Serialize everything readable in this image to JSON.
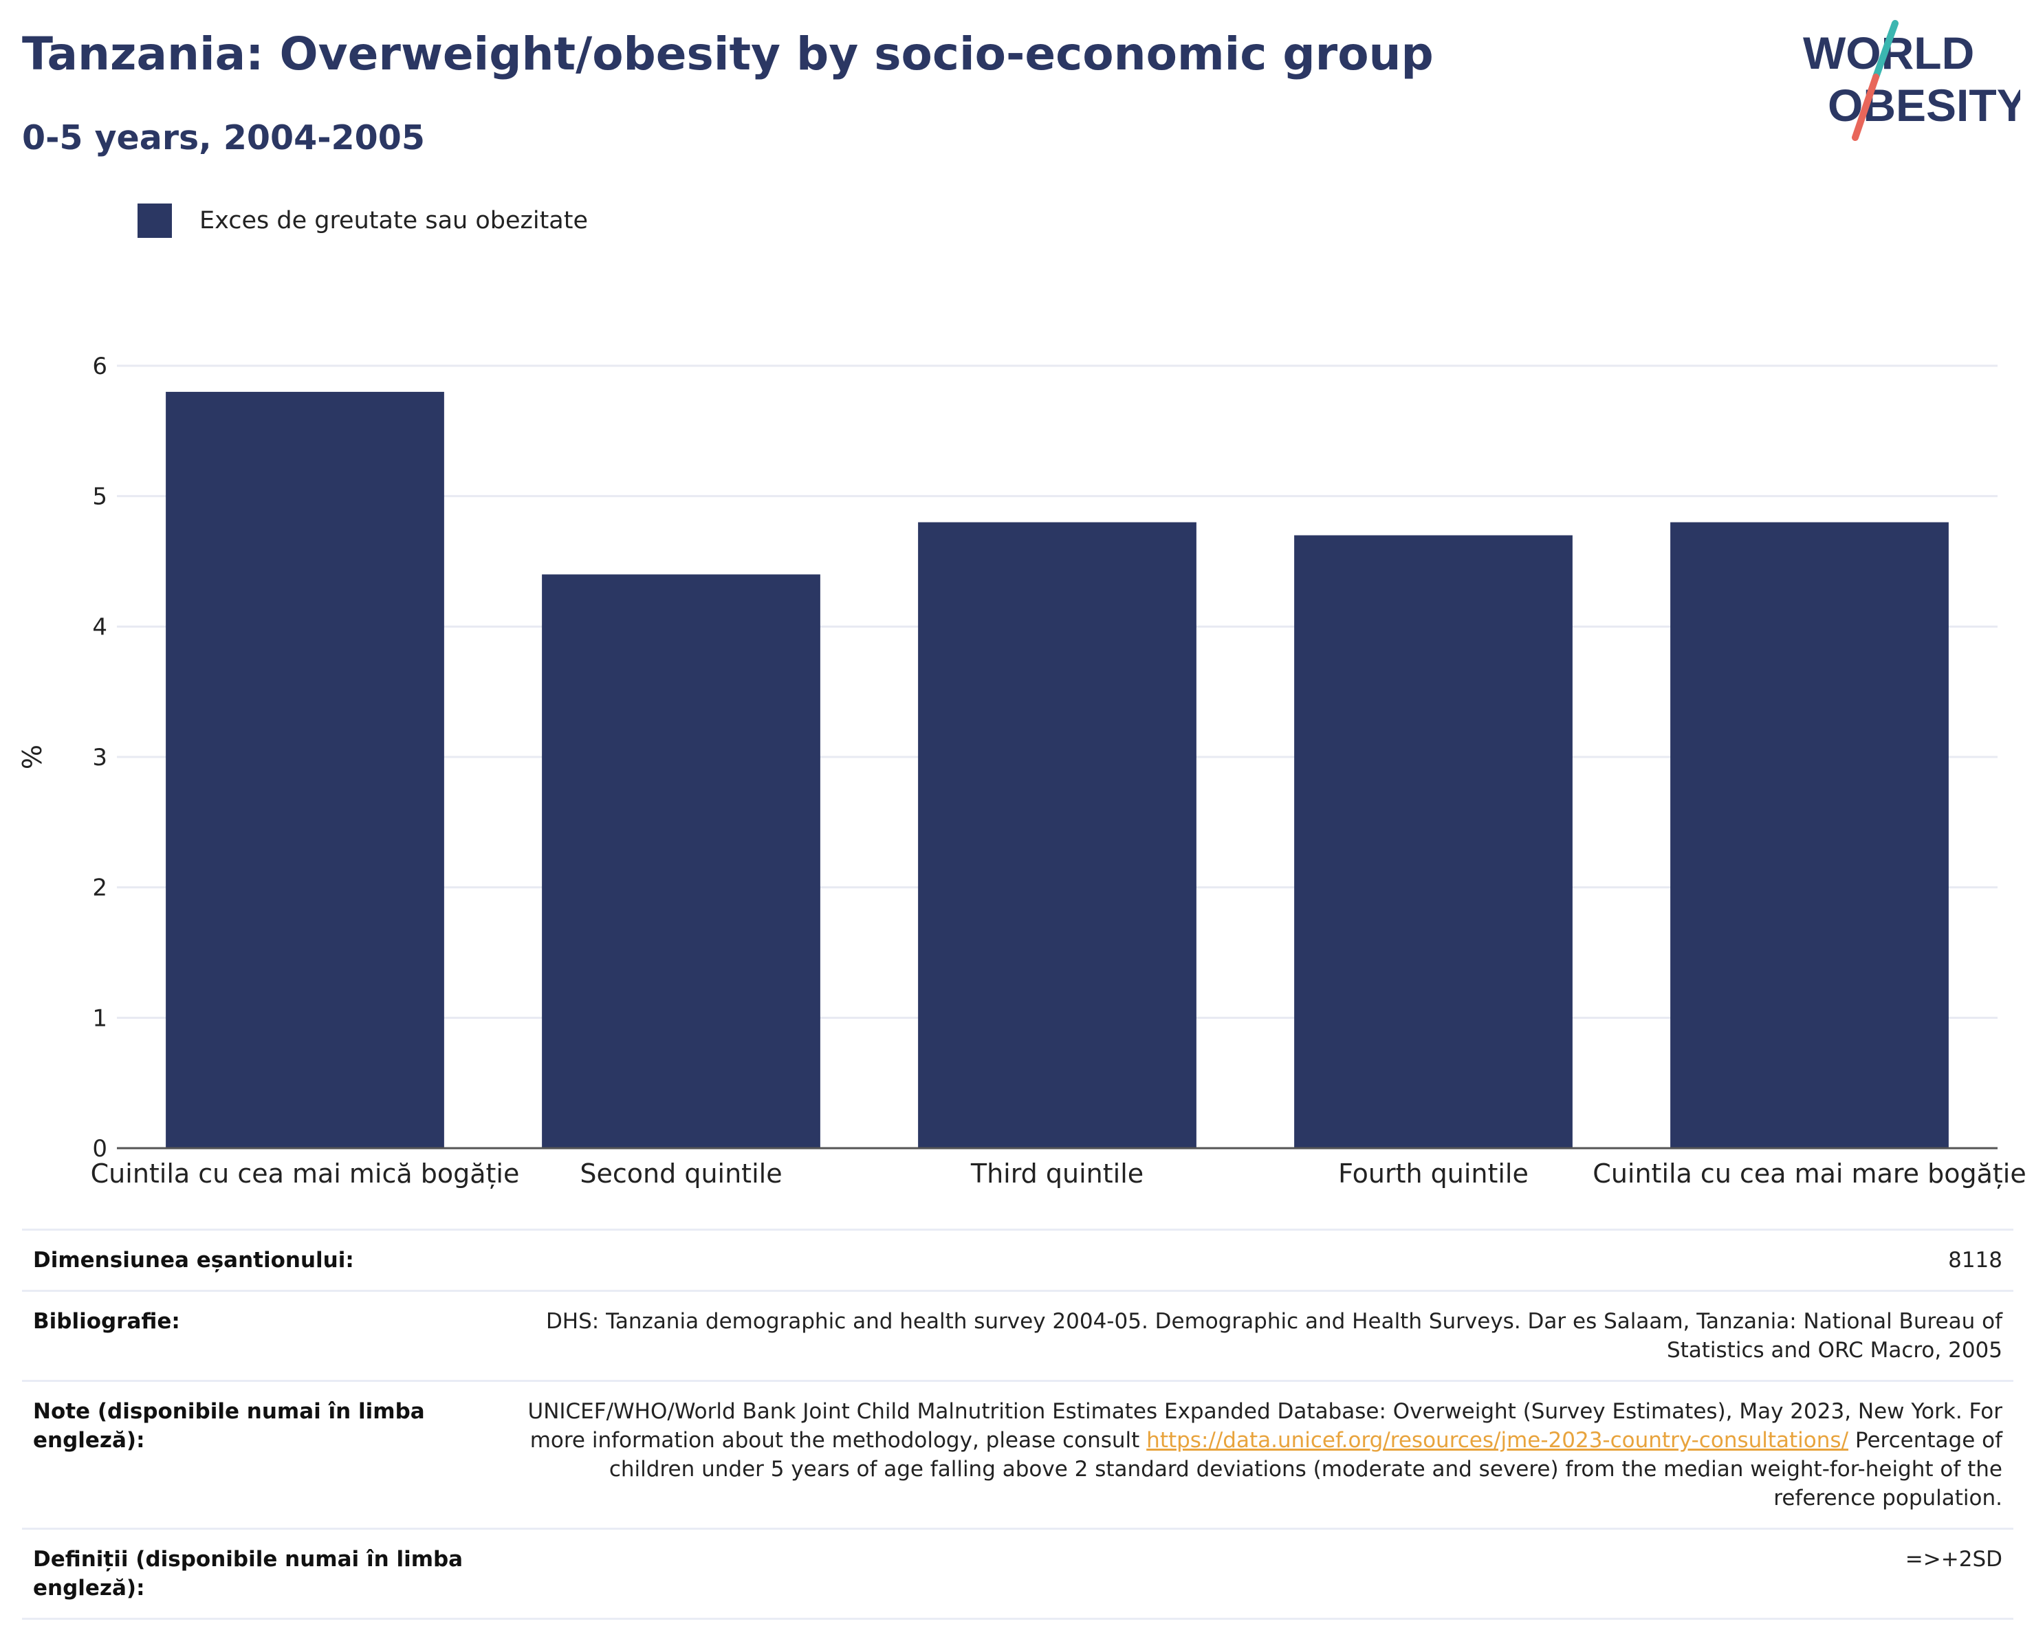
{
  "header": {
    "title": "Tanzania: Overweight/obesity by socio-economic group",
    "subtitle": "0-5 years, 2004-2005"
  },
  "logo": {
    "line1": "WORLD",
    "line2": "OBESITY",
    "text_color": "#2b3763",
    "accent_teal": "#3bb6b0",
    "accent_red": "#e8665a"
  },
  "legend": {
    "label": "Exces de greutate sau obezitate",
    "color": "#2b3763"
  },
  "chart_data": {
    "type": "bar",
    "title": "Tanzania: Overweight/obesity by socio-economic group",
    "subtitle": "0-5 years, 2004-2005",
    "categories": [
      "Cuintila cu cea mai mică bogăție",
      "Second quintile",
      "Third quintile",
      "Fourth quintile",
      "Cuintila cu cea mai mare bogăție"
    ],
    "series": [
      {
        "name": "Exces de greutate sau obezitate",
        "values": [
          5.8,
          4.4,
          4.8,
          4.7,
          4.8
        ],
        "color": "#2b3763"
      }
    ],
    "xlabel": "",
    "ylabel": "%",
    "ylim": [
      0,
      6
    ],
    "yticks": [
      0,
      1,
      2,
      3,
      4,
      5,
      6
    ],
    "grid": true,
    "legend_position": "top-left"
  },
  "info": {
    "sample_size": {
      "label": "Dimensiunea eșantionului:",
      "value": "8118"
    },
    "bibliography": {
      "label": "Bibliografie:",
      "value": "DHS: Tanzania demographic and health survey 2004-05. Demographic and Health Surveys. Dar es Salaam, Tanzania: National Bureau of Statistics and ORC Macro, 2005"
    },
    "notes": {
      "label": "Note (disponibile numai în limba engleză):",
      "text_before": "UNICEF/WHO/World Bank Joint Child Malnutrition Estimates Expanded Database: Overweight (Survey Estimates), May 2023, New York. For more information about the methodology, please consult ",
      "link": "https://data.unicef.org/resources/jme-2023-country-consultations/",
      "text_after": " Percentage of children under 5 years of age falling above 2 standard deviations (moderate and severe) from the median weight-for-height of the reference population."
    },
    "definitions": {
      "label": "Definiții (disponibile numai în limba engleză):",
      "value": "=>+2SD"
    }
  }
}
